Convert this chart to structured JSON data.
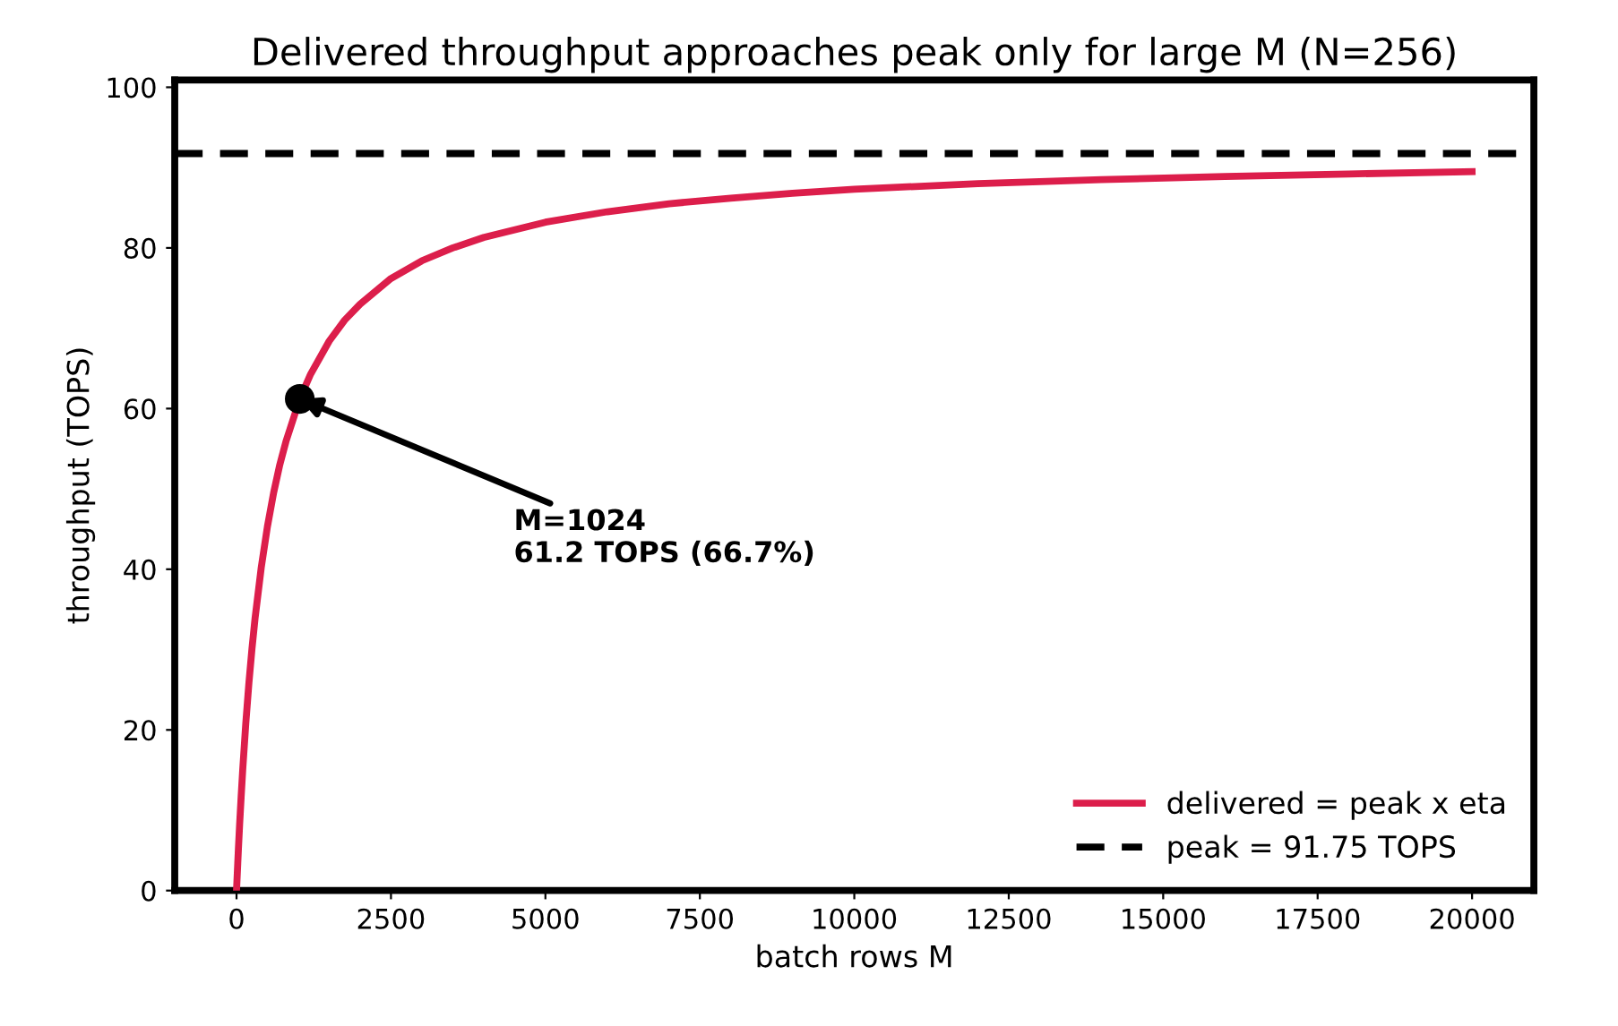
{
  "chart_data": {
    "type": "line",
    "title": "Delivered throughput approaches peak only for large M (N=256)",
    "xlabel": "batch rows M",
    "ylabel": "throughput (TOPS)",
    "series": [
      {
        "name": "delivered = peak x eta",
        "color": "#dc1e4b",
        "x": [
          0,
          20,
          30,
          50,
          75,
          100,
          150,
          200,
          250,
          300,
          400,
          500,
          600,
          700,
          800,
          1024,
          1200,
          1500,
          1750,
          2000,
          2500,
          3000,
          3500,
          4000,
          5000,
          6000,
          7000,
          8000,
          9000,
          10000,
          12000,
          14000,
          16000,
          18000,
          20000
        ],
        "values": [
          0,
          3.4,
          5.1,
          8.2,
          11.7,
          15.0,
          20.8,
          25.8,
          30.1,
          33.9,
          40.2,
          45.3,
          49.5,
          53.0,
          55.9,
          61.2,
          64.3,
          68.4,
          71.0,
          73.0,
          76.2,
          78.4,
          80.0,
          81.3,
          83.2,
          84.5,
          85.5,
          86.2,
          86.8,
          87.3,
          88.0,
          88.5,
          88.9,
          89.2,
          89.5
        ]
      },
      {
        "type": "scatter",
        "color": "#000000",
        "x": [
          1024
        ],
        "values": [
          61.2
        ]
      }
    ],
    "ref_lines": [
      {
        "axis": "y",
        "value": 91.75,
        "label": "peak = 91.75 TOPS",
        "color": "#000000",
        "line_style": "dashed"
      }
    ],
    "annotations": [
      {
        "text": "M=1024\n61.2 TOPS (66.7%)",
        "x": 1024,
        "y": 61.2
      }
    ],
    "xlim": [
      -1000,
      21000
    ],
    "ylim": [
      0,
      100.9
    ],
    "xticks": [
      0,
      2500,
      5000,
      7500,
      10000,
      12500,
      15000,
      17500,
      20000
    ],
    "yticks": [
      0,
      20,
      40,
      60,
      80,
      100
    ],
    "grid": false,
    "legend": "bottom right"
  }
}
